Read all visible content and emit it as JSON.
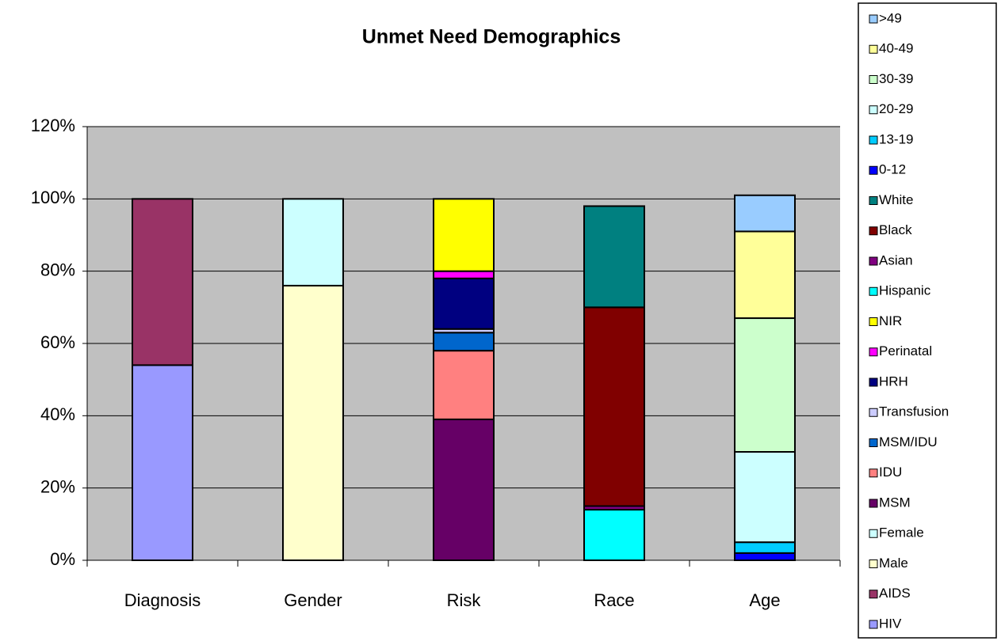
{
  "chart_data": {
    "type": "stacked_bar",
    "title": "Unmet Need Demographics",
    "categories": [
      "Diagnosis",
      "Gender",
      "Risk",
      "Race",
      "Age"
    ],
    "ylim": [
      0,
      120
    ],
    "yticks": [
      {
        "value": 0,
        "label": "0%"
      },
      {
        "value": 20,
        "label": "20%"
      },
      {
        "value": 40,
        "label": "40%"
      },
      {
        "value": 60,
        "label": "60%"
      },
      {
        "value": 80,
        "label": "80%"
      },
      {
        "value": 100,
        "label": "100%"
      },
      {
        "value": 120,
        "label": "120%"
      }
    ],
    "grid": true,
    "series": [
      {
        "name": "HIV",
        "color": "#9999ff",
        "values": [
          54,
          null,
          null,
          null,
          null
        ]
      },
      {
        "name": "AIDS",
        "color": "#993366",
        "values": [
          46,
          null,
          null,
          null,
          null
        ]
      },
      {
        "name": "Male",
        "color": "#ffffcc",
        "values": [
          null,
          76,
          null,
          null,
          null
        ]
      },
      {
        "name": "Female",
        "color": "#ccffff",
        "values": [
          null,
          24,
          null,
          null,
          null
        ]
      },
      {
        "name": "MSM",
        "color": "#660066",
        "values": [
          null,
          null,
          39,
          null,
          null
        ]
      },
      {
        "name": "IDU",
        "color": "#ff8080",
        "values": [
          null,
          null,
          19,
          null,
          null
        ]
      },
      {
        "name": "MSM/IDU",
        "color": "#0066cc",
        "values": [
          null,
          null,
          5,
          null,
          null
        ]
      },
      {
        "name": "Transfusion",
        "color": "#ccccff",
        "values": [
          null,
          null,
          1,
          null,
          null
        ]
      },
      {
        "name": "HRH",
        "color": "#000080",
        "values": [
          null,
          null,
          14,
          null,
          null
        ]
      },
      {
        "name": "Perinatal",
        "color": "#ff00ff",
        "values": [
          null,
          null,
          2,
          null,
          null
        ]
      },
      {
        "name": "NIR",
        "color": "#ffff00",
        "values": [
          null,
          null,
          20,
          null,
          null
        ]
      },
      {
        "name": "Hispanic",
        "color": "#00ffff",
        "values": [
          null,
          null,
          null,
          14,
          null
        ]
      },
      {
        "name": "Asian",
        "color": "#800080",
        "values": [
          null,
          null,
          null,
          1,
          null
        ]
      },
      {
        "name": "Black",
        "color": "#800000",
        "values": [
          null,
          null,
          null,
          55,
          null
        ]
      },
      {
        "name": "White",
        "color": "#008080",
        "values": [
          null,
          null,
          null,
          28,
          null
        ]
      },
      {
        "name": "0-12",
        "color": "#0000ff",
        "values": [
          null,
          null,
          null,
          null,
          2
        ]
      },
      {
        "name": "13-19",
        "color": "#00ccff",
        "values": [
          null,
          null,
          null,
          null,
          3
        ]
      },
      {
        "name": "20-29",
        "color": "#ccffff",
        "values": [
          null,
          null,
          null,
          null,
          25
        ]
      },
      {
        "name": "30-39",
        "color": "#ccffcc",
        "values": [
          null,
          null,
          null,
          null,
          37
        ]
      },
      {
        "name": "40-49",
        "color": "#ffff99",
        "values": [
          null,
          null,
          null,
          null,
          24
        ]
      },
      {
        "name": ">49",
        "color": "#99ccff",
        "values": [
          null,
          null,
          null,
          null,
          10
        ]
      }
    ]
  }
}
